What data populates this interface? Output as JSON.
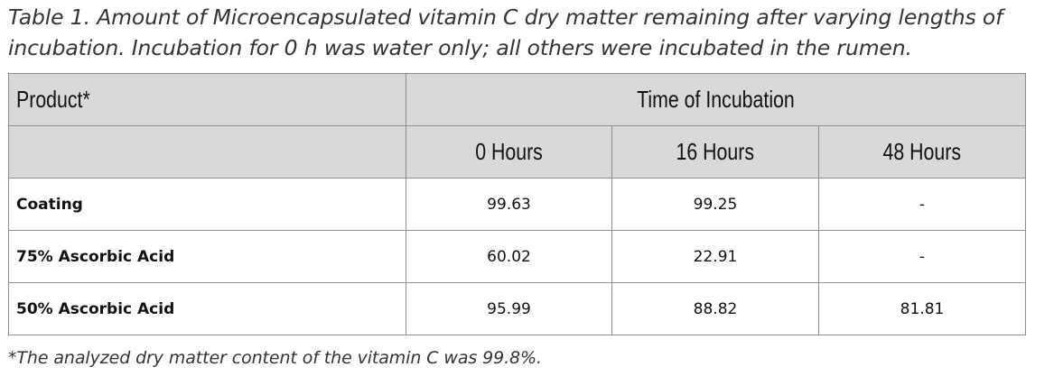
{
  "caption": "Table 1. Amount of Microencapsulated vitamin C dry matter remaining after varying lengths of incubation. Incubation for 0 h was water only; all others were incubated in the rumen.",
  "table": {
    "product_header": "Product*",
    "group_header": "Time of Incubation",
    "columns": [
      "0 Hours",
      "16 Hours",
      "48 Hours"
    ],
    "rows": [
      {
        "label": "Coating",
        "values": [
          "99.63",
          "99.25",
          "-"
        ]
      },
      {
        "label": "75% Ascorbic Acid",
        "values": [
          "60.02",
          "22.91",
          "-"
        ]
      },
      {
        "label": "50% Ascorbic Acid",
        "values": [
          "95.99",
          "88.82",
          "81.81"
        ]
      }
    ]
  },
  "footnote": "*The analyzed dry matter content of the vitamin C was 99.8%.",
  "colors": {
    "header_background": "#d9d9d9",
    "border": "#8c8c8c",
    "body_background": "#ffffff"
  }
}
